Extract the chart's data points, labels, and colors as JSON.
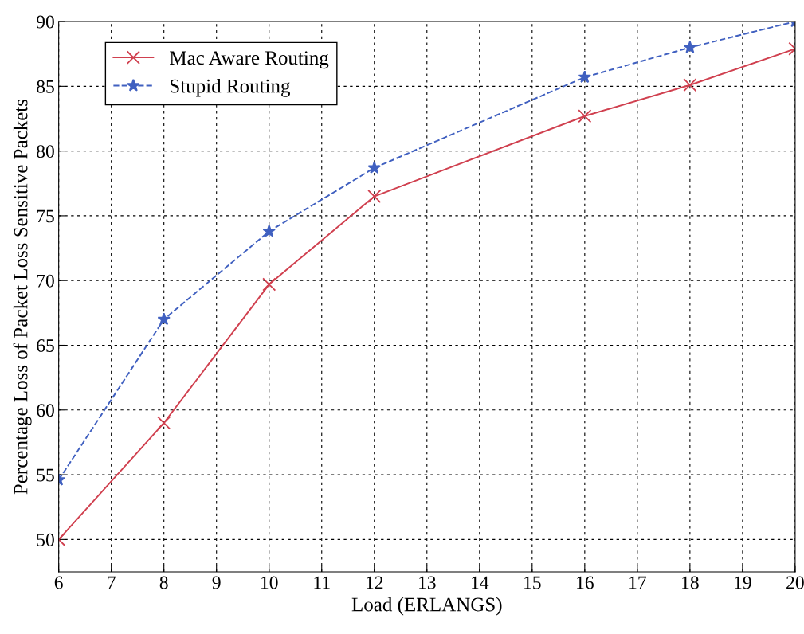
{
  "chart_data": {
    "type": "line",
    "xlabel": "Load (ERLANGS)",
    "ylabel": "Percentage Loss of Packet Loss Sensitive Packets",
    "xlim": [
      6,
      20
    ],
    "xticks": [
      6,
      7,
      8,
      9,
      10,
      11,
      12,
      13,
      14,
      15,
      16,
      17,
      18,
      19,
      20
    ],
    "ylim": [
      47.5,
      90
    ],
    "yticks": [
      50,
      55,
      60,
      65,
      70,
      75,
      80,
      85,
      90
    ],
    "grid": true,
    "legend": "top left",
    "series": [
      {
        "name": "Mac Aware Routing",
        "color": "#d0404f",
        "x": [
          6,
          8,
          10,
          12,
          16,
          18,
          20
        ],
        "values": [
          50,
          59,
          69.7,
          76.5,
          82.7,
          85.1,
          87.9
        ],
        "marker": "cross",
        "line_style": "solid"
      },
      {
        "name": "Stupid Routing",
        "color": "#4060c0",
        "x": [
          6,
          8,
          10,
          12,
          16,
          18,
          20
        ],
        "values": [
          54.6,
          67,
          73.8,
          78.7,
          85.7,
          88,
          90
        ],
        "marker": "star",
        "line_style": "dashed"
      }
    ]
  }
}
